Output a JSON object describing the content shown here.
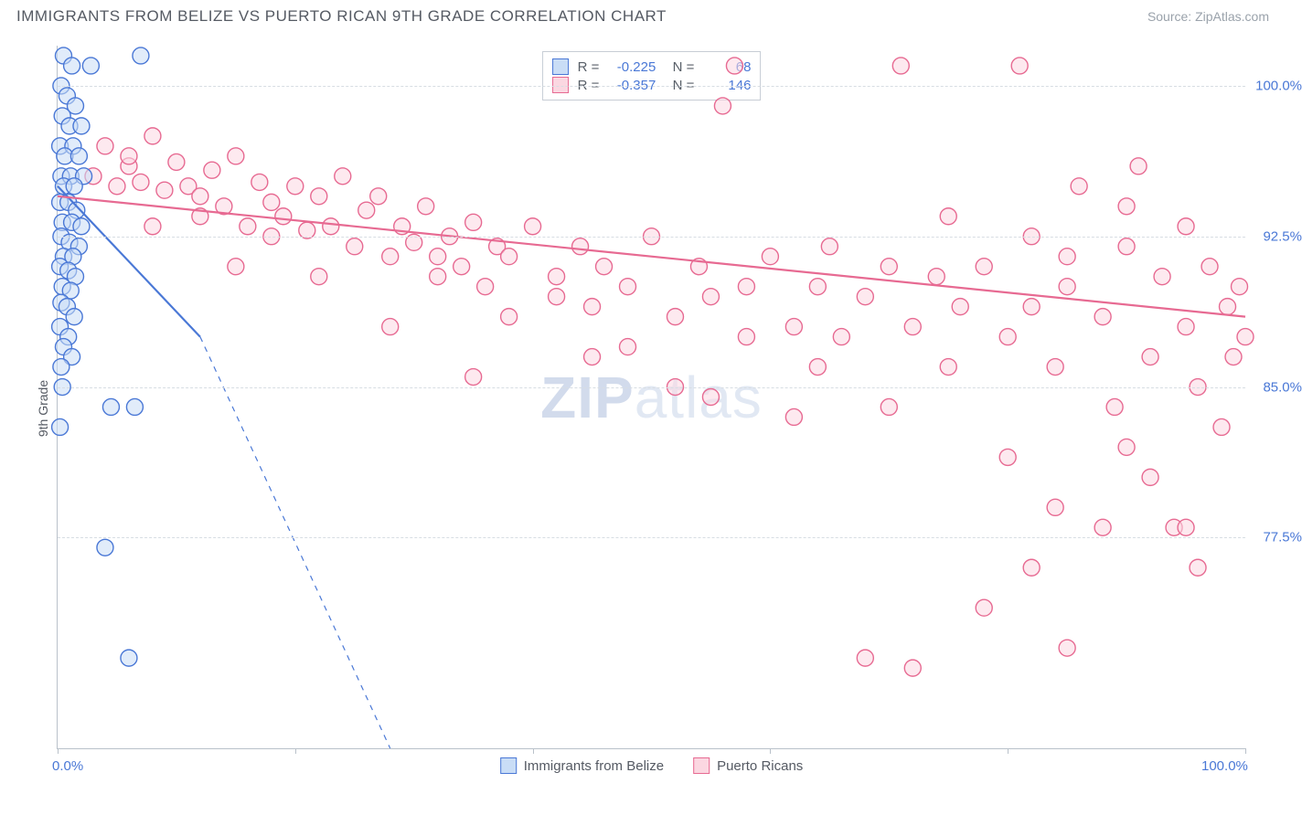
{
  "header": {
    "title": "IMMIGRANTS FROM BELIZE VS PUERTO RICAN 9TH GRADE CORRELATION CHART",
    "source_label": "Source:",
    "source_name": "ZipAtlas.com"
  },
  "chart": {
    "type": "scatter",
    "ylabel": "9th Grade",
    "watermark": "ZIPatlas",
    "background_color": "#ffffff",
    "grid_color": "#d7dde3",
    "axis_color": "#b9c1ca",
    "tick_label_color": "#4a78d6",
    "xlim": [
      0,
      100
    ],
    "ylim": [
      67,
      102
    ],
    "xticks": [
      0,
      20,
      40,
      60,
      80,
      100
    ],
    "xtick_labels_visible": {
      "0": "0.0%",
      "100": "100.0%"
    },
    "yticks": [
      77.5,
      85.0,
      92.5,
      100.0
    ],
    "ytick_labels": [
      "77.5%",
      "85.0%",
      "92.5%",
      "100.0%"
    ],
    "marker_radius": 9,
    "marker_stroke_width": 1.4,
    "trendline_width": 2.2,
    "series": [
      {
        "name": "Immigrants from Belize",
        "fill": "#c9ddf6",
        "stroke": "#4a78d6",
        "fill_opacity": 0.55,
        "R": "-0.225",
        "N": "68",
        "trend": {
          "x1": 0,
          "y1": 95.0,
          "x2_solid": 12,
          "y2_solid": 87.5,
          "x2_dash": 28,
          "y2_dash": 67
        },
        "points": [
          [
            0.5,
            101.5
          ],
          [
            1.2,
            101
          ],
          [
            2.8,
            101
          ],
          [
            7.0,
            101.5
          ],
          [
            0.3,
            100
          ],
          [
            0.8,
            99.5
          ],
          [
            1.5,
            99
          ],
          [
            0.4,
            98.5
          ],
          [
            1.0,
            98
          ],
          [
            2.0,
            98
          ],
          [
            0.2,
            97
          ],
          [
            1.3,
            97
          ],
          [
            0.6,
            96.5
          ],
          [
            1.8,
            96.5
          ],
          [
            0.3,
            95.5
          ],
          [
            1.1,
            95.5
          ],
          [
            2.2,
            95.5
          ],
          [
            0.5,
            95
          ],
          [
            1.4,
            95
          ],
          [
            0.2,
            94.2
          ],
          [
            0.9,
            94.2
          ],
          [
            1.6,
            93.8
          ],
          [
            0.4,
            93.2
          ],
          [
            1.2,
            93.2
          ],
          [
            2.0,
            93
          ],
          [
            0.3,
            92.5
          ],
          [
            1.0,
            92.2
          ],
          [
            1.8,
            92
          ],
          [
            0.5,
            91.5
          ],
          [
            1.3,
            91.5
          ],
          [
            0.2,
            91
          ],
          [
            0.9,
            90.8
          ],
          [
            1.5,
            90.5
          ],
          [
            0.4,
            90
          ],
          [
            1.1,
            89.8
          ],
          [
            0.3,
            89.2
          ],
          [
            0.8,
            89
          ],
          [
            1.4,
            88.5
          ],
          [
            0.2,
            88
          ],
          [
            0.9,
            87.5
          ],
          [
            0.5,
            87
          ],
          [
            1.2,
            86.5
          ],
          [
            0.3,
            86
          ],
          [
            4.5,
            84
          ],
          [
            6.5,
            84
          ],
          [
            0.2,
            83
          ],
          [
            4.0,
            77
          ],
          [
            6.0,
            71.5
          ],
          [
            0.4,
            85
          ]
        ]
      },
      {
        "name": "Puerto Ricans",
        "fill": "#fbd7e1",
        "stroke": "#e76a92",
        "fill_opacity": 0.55,
        "R": "-0.357",
        "N": "146",
        "trend": {
          "x1": 0,
          "y1": 94.5,
          "x2_solid": 100,
          "y2_solid": 88.5,
          "x2_dash": 100,
          "y2_dash": 88.5
        },
        "points": [
          [
            3,
            95.5
          ],
          [
            4,
            97
          ],
          [
            5,
            95
          ],
          [
            6,
            96
          ],
          [
            7,
            95.2
          ],
          [
            8,
            97.5
          ],
          [
            9,
            94.8
          ],
          [
            10,
            96.2
          ],
          [
            11,
            95
          ],
          [
            12,
            93.5
          ],
          [
            13,
            95.8
          ],
          [
            14,
            94
          ],
          [
            15,
            96.5
          ],
          [
            16,
            93
          ],
          [
            17,
            95.2
          ],
          [
            18,
            94.2
          ],
          [
            19,
            93.5
          ],
          [
            20,
            95
          ],
          [
            21,
            92.8
          ],
          [
            22,
            94.5
          ],
          [
            23,
            93
          ],
          [
            24,
            95.5
          ],
          [
            25,
            92
          ],
          [
            26,
            93.8
          ],
          [
            27,
            94.5
          ],
          [
            28,
            91.5
          ],
          [
            29,
            93
          ],
          [
            30,
            92.2
          ],
          [
            31,
            94
          ],
          [
            32,
            90.5
          ],
          [
            33,
            92.5
          ],
          [
            34,
            91
          ],
          [
            35,
            93.2
          ],
          [
            36,
            90
          ],
          [
            37,
            92
          ],
          [
            38,
            91.5
          ],
          [
            40,
            93
          ],
          [
            42,
            90.5
          ],
          [
            44,
            92
          ],
          [
            45,
            89
          ],
          [
            46,
            91
          ],
          [
            48,
            90
          ],
          [
            50,
            92.5
          ],
          [
            52,
            88.5
          ],
          [
            54,
            91
          ],
          [
            55,
            89.5
          ],
          [
            56,
            99
          ],
          [
            57,
            101
          ],
          [
            58,
            90
          ],
          [
            60,
            91.5
          ],
          [
            62,
            88
          ],
          [
            64,
            90
          ],
          [
            65,
            92
          ],
          [
            66,
            87.5
          ],
          [
            68,
            89.5
          ],
          [
            70,
            91
          ],
          [
            71,
            101
          ],
          [
            72,
            88
          ],
          [
            74,
            90.5
          ],
          [
            75,
            86
          ],
          [
            76,
            89
          ],
          [
            78,
            91
          ],
          [
            80,
            87.5
          ],
          [
            81,
            101
          ],
          [
            82,
            89
          ],
          [
            84,
            86
          ],
          [
            85,
            90
          ],
          [
            86,
            95
          ],
          [
            88,
            88.5
          ],
          [
            89,
            84
          ],
          [
            90,
            92
          ],
          [
            91,
            96
          ],
          [
            92,
            86.5
          ],
          [
            93,
            90.5
          ],
          [
            94,
            78
          ],
          [
            95,
            88
          ],
          [
            96,
            85
          ],
          [
            97,
            91
          ],
          [
            98,
            83
          ],
          [
            98.5,
            89
          ],
          [
            99,
            86.5
          ],
          [
            99.5,
            90
          ],
          [
            100,
            87.5
          ],
          [
            95,
            78
          ],
          [
            88,
            78
          ],
          [
            82,
            76
          ],
          [
            78,
            74
          ],
          [
            68,
            71.5
          ],
          [
            85,
            72
          ],
          [
            92,
            80.5
          ],
          [
            96,
            76
          ],
          [
            90,
            82
          ],
          [
            72,
            71
          ],
          [
            35,
            85.5
          ],
          [
            28,
            88
          ],
          [
            45,
            86.5
          ],
          [
            52,
            85
          ],
          [
            15,
            91
          ],
          [
            8,
            93
          ],
          [
            22,
            90.5
          ],
          [
            48,
            87
          ],
          [
            38,
            88.5
          ],
          [
            64,
            86
          ],
          [
            58,
            87.5
          ],
          [
            70,
            84
          ],
          [
            80,
            81.5
          ],
          [
            84,
            79
          ],
          [
            62,
            83.5
          ],
          [
            55,
            84.5
          ],
          [
            42,
            89.5
          ],
          [
            32,
            91.5
          ],
          [
            18,
            92.5
          ],
          [
            12,
            94.5
          ],
          [
            6,
            96.5
          ],
          [
            75,
            93.5
          ],
          [
            82,
            92.5
          ],
          [
            90,
            94
          ],
          [
            95,
            93
          ],
          [
            85,
            91.5
          ]
        ]
      }
    ],
    "bottom_legend": [
      {
        "label": "Immigrants from Belize",
        "fill": "#c9ddf6",
        "stroke": "#4a78d6"
      },
      {
        "label": "Puerto Ricans",
        "fill": "#fbd7e1",
        "stroke": "#e76a92"
      }
    ]
  }
}
